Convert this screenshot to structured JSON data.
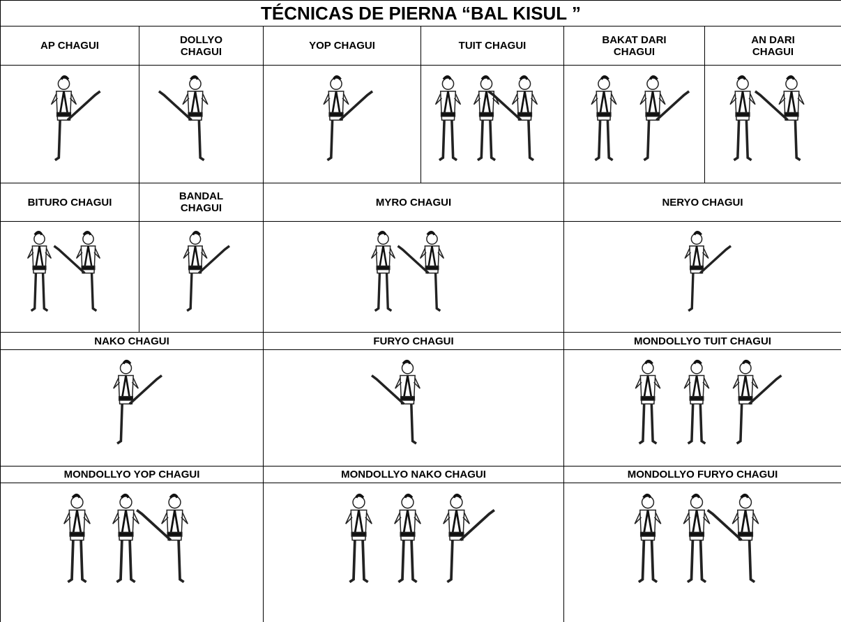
{
  "title": "TÉCNICAS DE PIERNA “BAL KISUL ”",
  "rows": [
    {
      "cells": [
        "AP CHAGUI",
        "DOLLYO\nCHAGUI",
        "YOP CHAGUI",
        "TUIT CHAGUI",
        "BAKAT DARI\nCHAGUI",
        "AN DARI\nCHAGUI"
      ]
    },
    {
      "cells": [
        "BITURO CHAGUI",
        "BANDAL\nCHAGUI",
        "MYRO CHAGUI",
        "NERYO CHAGUI"
      ]
    },
    {
      "cells": [
        "NAKO CHAGUI",
        "FURYO CHAGUI",
        "MONDOLLYO TUIT CHAGUI"
      ]
    },
    {
      "cells": [
        "MONDOLLYO YOP CHAGUI",
        "MONDOLLYO NAKO CHAGUI",
        "MONDOLLYO FURYO CHAGUI"
      ]
    }
  ]
}
